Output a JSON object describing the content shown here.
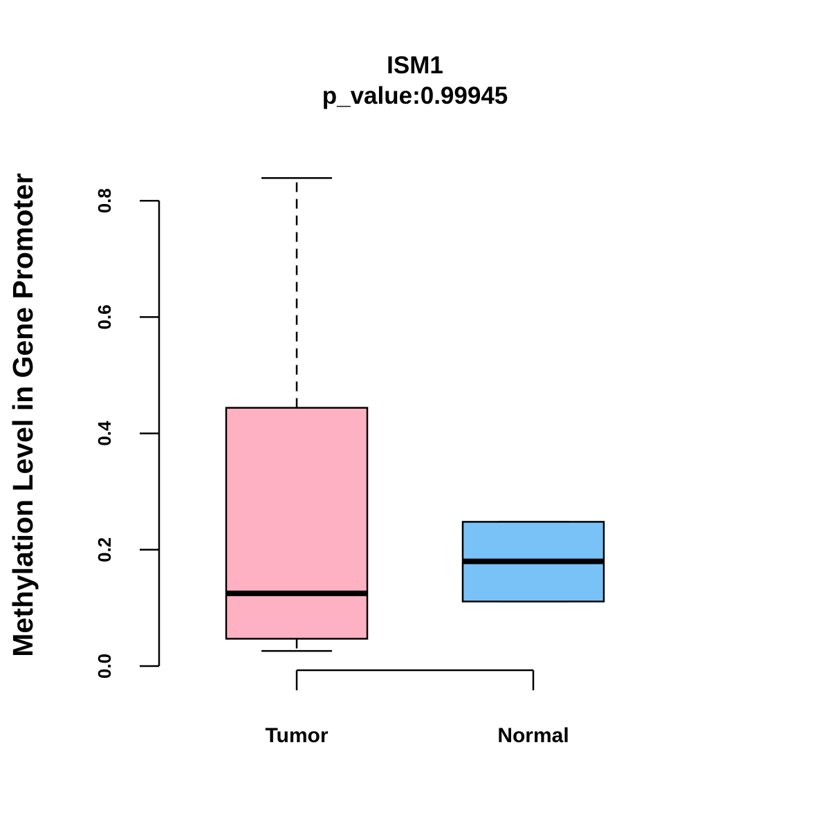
{
  "chart_data": {
    "type": "boxplot",
    "title": "ISM1",
    "subtitle": "p_value:0.99945",
    "xlabel": "",
    "ylabel": "Methylation Level in Gene Promoter",
    "ylim": [
      0,
      0.8
    ],
    "yticks": [
      0.0,
      0.2,
      0.4,
      0.6,
      0.8
    ],
    "ytick_labels": [
      "0.0",
      "0.2",
      "0.4",
      "0.6",
      "0.8"
    ],
    "categories": [
      "Tumor",
      "Normal"
    ],
    "boxes": [
      {
        "name": "Tumor",
        "whisker_low": 0.026,
        "q1": 0.047,
        "median": 0.125,
        "q3": 0.444,
        "whisker_high": 0.839,
        "color": "#FDB1C3"
      },
      {
        "name": "Normal",
        "whisker_low": 0.111,
        "q1": 0.111,
        "median": 0.18,
        "q3": 0.248,
        "whisker_high": 0.248,
        "color": "#78C2F8"
      }
    ],
    "grid": false,
    "legend": "none"
  }
}
